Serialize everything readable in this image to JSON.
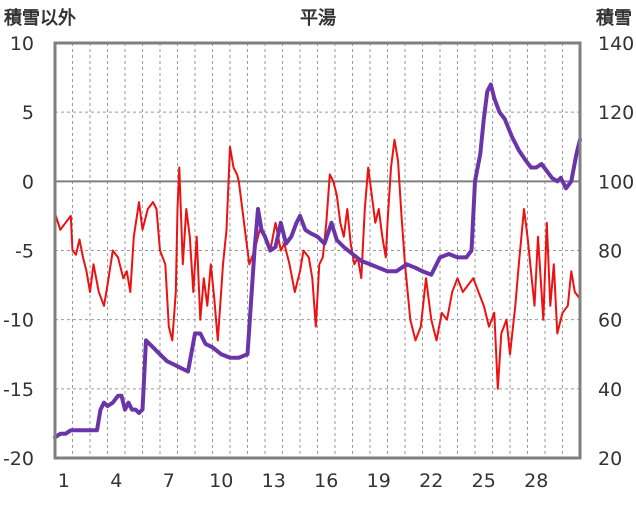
{
  "chart_data": {
    "type": "line",
    "title": "平湯",
    "ylabel_left": "積雪以外",
    "ylabel_right": "積雪",
    "y_left": {
      "min": -20,
      "max": 10,
      "ticks": [
        "10",
        "5",
        "0",
        "-5",
        "-10",
        "-15",
        "-20"
      ]
    },
    "y_right": {
      "min": 20,
      "max": 140,
      "ticks": [
        "140",
        "120",
        "100",
        "80",
        "60",
        "40",
        "20"
      ]
    },
    "x": {
      "min": 0,
      "max": 30,
      "tick_days": [
        1,
        4,
        7,
        10,
        13,
        16,
        19,
        22,
        25,
        28
      ],
      "tick_labels": [
        "1",
        "4",
        "7",
        "10",
        "13",
        "16",
        "19",
        "22",
        "25",
        "28"
      ]
    },
    "grid": true,
    "colors": {
      "temperature": "#ee1111",
      "snow_depth": "#6a35a8",
      "frame": "#7f7f7f",
      "zero_line": "#7f7f7f"
    },
    "series": [
      {
        "axis": "left",
        "values": [
          [
            0.0,
            -2.3
          ],
          [
            0.3,
            -3.5
          ],
          [
            0.6,
            -3.0
          ],
          [
            0.9,
            -2.5
          ],
          [
            1.0,
            -5.0
          ],
          [
            1.2,
            -5.3
          ],
          [
            1.4,
            -4.2
          ],
          [
            1.6,
            -5.5
          ],
          [
            1.8,
            -6.5
          ],
          [
            2.0,
            -8.0
          ],
          [
            2.2,
            -6.0
          ],
          [
            2.5,
            -8.0
          ],
          [
            2.8,
            -9.0
          ],
          [
            3.0,
            -7.5
          ],
          [
            3.3,
            -5.0
          ],
          [
            3.6,
            -5.5
          ],
          [
            3.9,
            -7.0
          ],
          [
            4.1,
            -6.5
          ],
          [
            4.3,
            -8.0
          ],
          [
            4.5,
            -4.0
          ],
          [
            4.8,
            -1.5
          ],
          [
            5.0,
            -3.5
          ],
          [
            5.3,
            -2.0
          ],
          [
            5.6,
            -1.5
          ],
          [
            5.8,
            -2.0
          ],
          [
            6.0,
            -5.0
          ],
          [
            6.3,
            -6.0
          ],
          [
            6.5,
            -10.5
          ],
          [
            6.7,
            -11.5
          ],
          [
            6.9,
            -8.0
          ],
          [
            7.0,
            -2.0
          ],
          [
            7.1,
            1.0
          ],
          [
            7.3,
            -6.0
          ],
          [
            7.5,
            -2.0
          ],
          [
            7.7,
            -4.0
          ],
          [
            7.9,
            -8.0
          ],
          [
            8.1,
            -4.0
          ],
          [
            8.3,
            -10.0
          ],
          [
            8.5,
            -7.0
          ],
          [
            8.7,
            -9.0
          ],
          [
            8.9,
            -6.0
          ],
          [
            9.1,
            -8.5
          ],
          [
            9.3,
            -11.5
          ],
          [
            9.6,
            -6.0
          ],
          [
            9.8,
            -3.5
          ],
          [
            10.0,
            2.5
          ],
          [
            10.2,
            1.0
          ],
          [
            10.4,
            0.5
          ],
          [
            10.5,
            0.0
          ],
          [
            11.1,
            -6.0
          ],
          [
            11.4,
            -5.0
          ],
          [
            11.7,
            -3.5
          ],
          [
            12.0,
            -4.0
          ],
          [
            12.3,
            -5.0
          ],
          [
            12.6,
            -3.0
          ],
          [
            12.9,
            -5.0
          ],
          [
            13.1,
            -4.5
          ],
          [
            13.4,
            -6.0
          ],
          [
            13.7,
            -8.0
          ],
          [
            14.0,
            -6.5
          ],
          [
            14.2,
            -5.0
          ],
          [
            14.5,
            -5.5
          ],
          [
            14.7,
            -7.0
          ],
          [
            14.9,
            -10.5
          ],
          [
            15.1,
            -6.0
          ],
          [
            15.3,
            -5.5
          ],
          [
            15.5,
            -3.0
          ],
          [
            15.7,
            0.5
          ],
          [
            15.9,
            0.0
          ],
          [
            16.1,
            -1.0
          ],
          [
            16.3,
            -3.0
          ],
          [
            16.5,
            -4.0
          ],
          [
            16.7,
            -2.0
          ],
          [
            16.9,
            -4.5
          ],
          [
            17.1,
            -6.0
          ],
          [
            17.3,
            -5.5
          ],
          [
            17.5,
            -7.0
          ],
          [
            17.7,
            -2.0
          ],
          [
            17.9,
            1.0
          ],
          [
            18.1,
            -1.0
          ],
          [
            18.3,
            -3.0
          ],
          [
            18.5,
            -2.0
          ],
          [
            18.7,
            -4.0
          ],
          [
            18.9,
            -5.5
          ],
          [
            19.0,
            -3.0
          ],
          [
            19.2,
            1.0
          ],
          [
            19.4,
            3.0
          ],
          [
            19.6,
            1.5
          ],
          [
            19.8,
            -2.5
          ],
          [
            20.0,
            -6.0
          ],
          [
            20.3,
            -10.0
          ],
          [
            20.6,
            -11.5
          ],
          [
            20.9,
            -10.5
          ],
          [
            21.2,
            -7.0
          ],
          [
            21.5,
            -10.0
          ],
          [
            21.8,
            -11.5
          ],
          [
            22.1,
            -9.5
          ],
          [
            22.4,
            -10.0
          ],
          [
            22.7,
            -8.0
          ],
          [
            23.0,
            -7.0
          ],
          [
            23.3,
            -8.0
          ],
          [
            23.6,
            -7.5
          ],
          [
            23.9,
            -7.0
          ],
          [
            24.2,
            -8.0
          ],
          [
            24.5,
            -9.0
          ],
          [
            24.8,
            -10.5
          ],
          [
            25.1,
            -9.5
          ],
          [
            25.3,
            -15.0
          ],
          [
            25.5,
            -11.0
          ],
          [
            25.8,
            -10.0
          ],
          [
            26.0,
            -12.5
          ],
          [
            26.3,
            -9.0
          ],
          [
            26.5,
            -6.0
          ],
          [
            26.8,
            -2.0
          ],
          [
            27.0,
            -4.0
          ],
          [
            27.2,
            -6.5
          ],
          [
            27.4,
            -9.0
          ],
          [
            27.6,
            -4.0
          ],
          [
            27.9,
            -10.0
          ],
          [
            28.1,
            -3.0
          ],
          [
            28.3,
            -9.0
          ],
          [
            28.5,
            -6.0
          ],
          [
            28.7,
            -11.0
          ],
          [
            29.0,
            -9.5
          ],
          [
            29.3,
            -9.0
          ],
          [
            29.5,
            -6.5
          ],
          [
            29.7,
            -8.0
          ],
          [
            30.0,
            -8.5
          ]
        ]
      },
      {
        "axis": "right",
        "values": [
          [
            0.0,
            26
          ],
          [
            0.3,
            27
          ],
          [
            0.6,
            27
          ],
          [
            0.9,
            28
          ],
          [
            1.5,
            28
          ],
          [
            2.0,
            28
          ],
          [
            2.4,
            28
          ],
          [
            2.6,
            34
          ],
          [
            2.8,
            36
          ],
          [
            3.0,
            35
          ],
          [
            3.3,
            36
          ],
          [
            3.6,
            38
          ],
          [
            3.8,
            38
          ],
          [
            4.0,
            34
          ],
          [
            4.2,
            36
          ],
          [
            4.4,
            34
          ],
          [
            4.6,
            34
          ],
          [
            4.8,
            33
          ],
          [
            5.0,
            34
          ],
          [
            5.2,
            54
          ],
          [
            5.6,
            52
          ],
          [
            6.0,
            50
          ],
          [
            6.4,
            48
          ],
          [
            6.8,
            47
          ],
          [
            7.2,
            46
          ],
          [
            7.6,
            45
          ],
          [
            8.0,
            56
          ],
          [
            8.3,
            56
          ],
          [
            8.6,
            53
          ],
          [
            9.0,
            52
          ],
          [
            9.5,
            50
          ],
          [
            10.0,
            49
          ],
          [
            10.5,
            49
          ],
          [
            11.0,
            50
          ],
          [
            11.4,
            80
          ],
          [
            11.6,
            92
          ],
          [
            11.8,
            86
          ],
          [
            12.0,
            84
          ],
          [
            12.3,
            80
          ],
          [
            12.6,
            81
          ],
          [
            12.9,
            88
          ],
          [
            13.2,
            82
          ],
          [
            13.5,
            84
          ],
          [
            13.8,
            88
          ],
          [
            14.0,
            90
          ],
          [
            14.3,
            86
          ],
          [
            14.6,
            85
          ],
          [
            15.0,
            84
          ],
          [
            15.4,
            82
          ],
          [
            15.8,
            88
          ],
          [
            16.1,
            83
          ],
          [
            16.5,
            81
          ],
          [
            17.0,
            79
          ],
          [
            17.5,
            77
          ],
          [
            18.0,
            76
          ],
          [
            18.5,
            75
          ],
          [
            19.0,
            74
          ],
          [
            19.5,
            74
          ],
          [
            19.8,
            75
          ],
          [
            20.1,
            76
          ],
          [
            20.6,
            75
          ],
          [
            21.0,
            74
          ],
          [
            21.5,
            73
          ],
          [
            22.0,
            78
          ],
          [
            22.5,
            79
          ],
          [
            23.0,
            78
          ],
          [
            23.5,
            78
          ],
          [
            23.8,
            80
          ],
          [
            24.0,
            100
          ],
          [
            24.3,
            108
          ],
          [
            24.5,
            118
          ],
          [
            24.7,
            126
          ],
          [
            24.9,
            128
          ],
          [
            25.1,
            124
          ],
          [
            25.4,
            120
          ],
          [
            25.7,
            118
          ],
          [
            26.1,
            113
          ],
          [
            26.5,
            109
          ],
          [
            26.9,
            106
          ],
          [
            27.2,
            104
          ],
          [
            27.5,
            104
          ],
          [
            27.8,
            105
          ],
          [
            28.1,
            103
          ],
          [
            28.4,
            101
          ],
          [
            28.7,
            100
          ],
          [
            28.9,
            101
          ],
          [
            29.2,
            98
          ],
          [
            29.5,
            100
          ],
          [
            29.8,
            108
          ],
          [
            30.0,
            112
          ]
        ]
      }
    ]
  }
}
